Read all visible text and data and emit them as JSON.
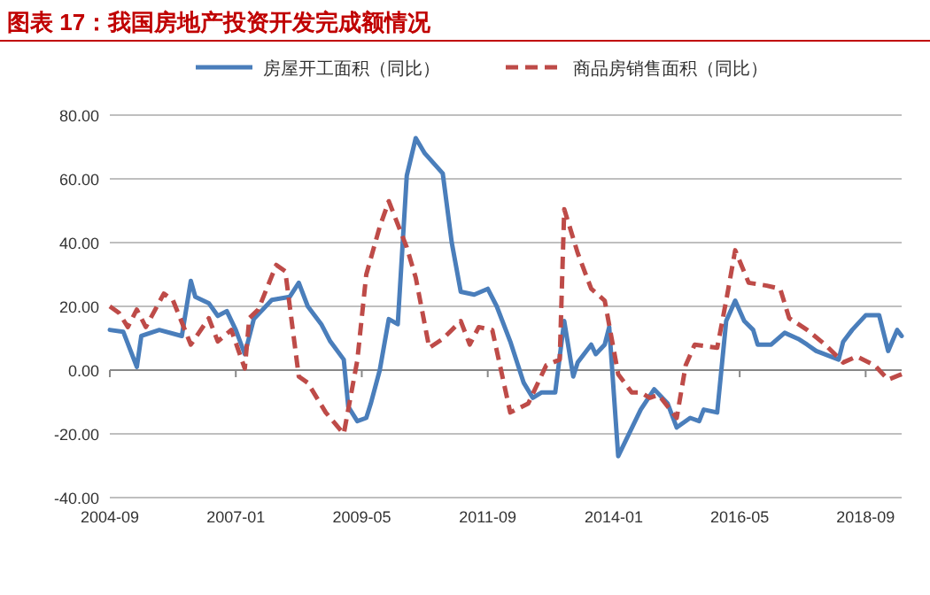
{
  "chart_data": {
    "type": "line",
    "title": "图表 17：我国房地产投资开发完成额情况",
    "legend": "top",
    "grid": "y",
    "xlim": [
      "2004-09",
      "2019-05"
    ],
    "xticks": [
      "2004-09",
      "2007-01",
      "2009-05",
      "2011-09",
      "2014-01",
      "2016-05",
      "2018-09"
    ],
    "ylim": [
      -40,
      80
    ],
    "yticks": [
      {
        "value": -40,
        "label": "-40.00"
      },
      {
        "value": -20,
        "label": "-20.00"
      },
      {
        "value": 0,
        "label": "0.00"
      },
      {
        "value": 20,
        "label": "20.00"
      },
      {
        "value": 40,
        "label": "40.00"
      },
      {
        "value": 60,
        "label": "60.00"
      },
      {
        "value": 80,
        "label": "80.00"
      }
    ],
    "series": [
      {
        "name": "房屋开工面积（同比）",
        "color": "#4a7ebb",
        "line_style": "solid",
        "x": [
          "2004-09",
          "2004-12",
          "2005-03",
          "2005-04",
          "2005-08",
          "2006-01",
          "2006-03",
          "2006-04",
          "2006-07",
          "2006-09",
          "2006-11",
          "2007-01",
          "2007-03",
          "2007-05",
          "2007-09",
          "2008-01",
          "2008-03",
          "2008-05",
          "2008-08",
          "2008-10",
          "2009-01",
          "2009-02",
          "2009-04",
          "2009-06",
          "2009-07",
          "2009-09",
          "2009-11",
          "2010-01",
          "2010-03",
          "2010-05",
          "2010-07",
          "2010-11",
          "2011-01",
          "2011-03",
          "2011-06",
          "2011-09",
          "2011-11",
          "2012-02",
          "2012-05",
          "2012-07",
          "2012-09",
          "2012-12",
          "2013-02",
          "2013-04",
          "2013-05",
          "2013-08",
          "2013-09",
          "2013-11",
          "2013-12",
          "2014-02",
          "2014-07",
          "2014-10",
          "2015-01",
          "2015-03",
          "2015-06",
          "2015-08",
          "2015-09",
          "2015-12",
          "2016-02",
          "2016-04",
          "2016-06",
          "2016-08",
          "2016-09",
          "2016-12",
          "2017-03",
          "2017-06",
          "2017-08",
          "2017-10",
          "2018-03",
          "2018-04",
          "2018-06",
          "2018-09",
          "2018-12",
          "2019-02",
          "2019-04",
          "2019-05"
        ],
        "values": [
          12.6,
          12,
          1,
          10.7,
          12.6,
          10.7,
          28,
          23,
          21,
          17,
          18.5,
          12.6,
          5,
          16,
          22,
          23,
          27.4,
          20,
          14.4,
          9,
          3.3,
          -11.5,
          -16,
          -15,
          -10.5,
          0,
          16,
          14.4,
          61,
          72.8,
          68,
          61.7,
          40,
          24.6,
          23.7,
          25.5,
          20,
          9,
          -4,
          -8.7,
          -7,
          -7,
          15.4,
          -2,
          2.4,
          8,
          5,
          8,
          13.5,
          -27,
          -12.4,
          -6,
          -10.5,
          -18,
          -15,
          -16,
          -12.4,
          -13.3,
          15.4,
          21.8,
          15.4,
          12.6,
          8,
          8,
          11.7,
          9.8,
          8,
          6,
          3.3,
          8.9,
          12.6,
          17.2,
          17.2,
          6,
          12.6,
          10.7
        ]
      },
      {
        "name": "商品房销售面积（同比）",
        "color": "#be4b48",
        "line_style": "dashed",
        "x": [
          "2004-09",
          "2004-11",
          "2005-01",
          "2005-03",
          "2005-05",
          "2005-09",
          "2005-11",
          "2006-03",
          "2006-07",
          "2006-09",
          "2006-12",
          "2007-03",
          "2007-04",
          "2007-06",
          "2007-10",
          "2007-12",
          "2008-03",
          "2008-05",
          "2008-09",
          "2009-01",
          "2009-04",
          "2009-06",
          "2009-09",
          "2009-11",
          "2010-03",
          "2010-05",
          "2010-08",
          "2010-11",
          "2011-03",
          "2011-05",
          "2011-07",
          "2011-10",
          "2012-02",
          "2012-06",
          "2012-10",
          "2013-01",
          "2013-02",
          "2013-05",
          "2013-08",
          "2013-11",
          "2014-02",
          "2014-05",
          "2014-07",
          "2014-09",
          "2014-11",
          "2015-03",
          "2015-05",
          "2015-07",
          "2015-12",
          "2016-02",
          "2016-04",
          "2016-07",
          "2016-11",
          "2017-02",
          "2017-04",
          "2017-08",
          "2017-12",
          "2018-04",
          "2018-07",
          "2018-11",
          "2019-02",
          "2019-05"
        ],
        "values": [
          20,
          18,
          13.5,
          19,
          13.5,
          24,
          22,
          8,
          16.3,
          9,
          12.6,
          0.5,
          16.3,
          19,
          33,
          31,
          -2,
          -4,
          -13.3,
          -20,
          3,
          30,
          45,
          53,
          38.5,
          29,
          7,
          9.8,
          15.4,
          8,
          13.5,
          12.6,
          -13.3,
          -10.5,
          1.5,
          3.3,
          50.5,
          36.7,
          25.5,
          21.8,
          -1.3,
          -7,
          -7,
          -8.7,
          -7.8,
          -15,
          1.5,
          8,
          7,
          21.8,
          37.6,
          27.4,
          26.5,
          25.5,
          16.3,
          12.6,
          8,
          2.4,
          4.3,
          1.5,
          -3,
          -1.3
        ]
      }
    ]
  }
}
